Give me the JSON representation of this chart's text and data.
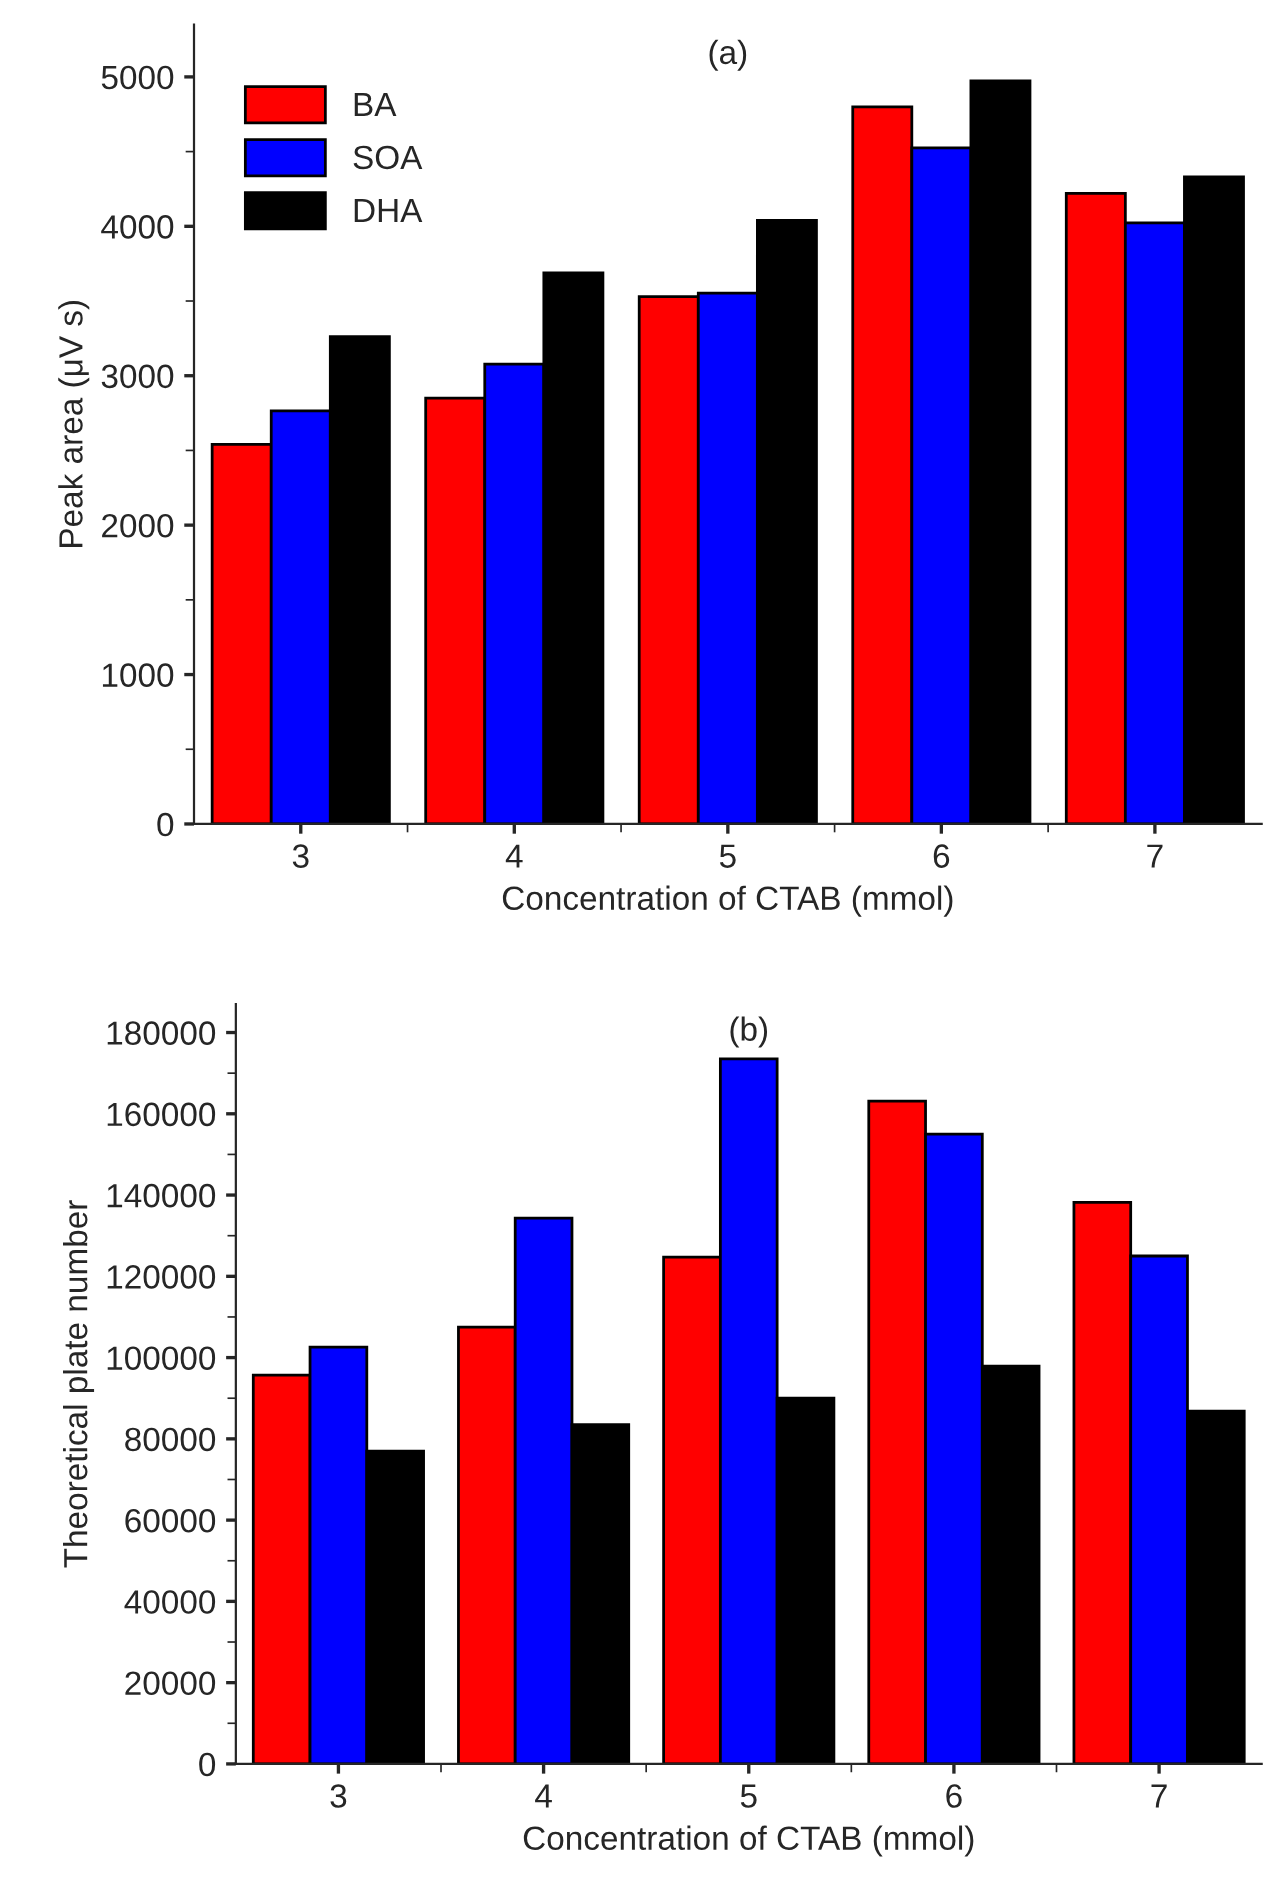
{
  "chart_data": [
    {
      "type": "bar",
      "title": "(a)",
      "xlabel": "Concentration of CTAB (mmol)",
      "ylabel": "Peak area (μV s)",
      "categories": [
        "3",
        "4",
        "5",
        "6",
        "7"
      ],
      "series": [
        {
          "name": "BA",
          "color": "#ff0000",
          "values": [
            2540,
            2850,
            3530,
            4800,
            4220
          ]
        },
        {
          "name": "SOA",
          "color": "#0000ff",
          "values": [
            2765,
            3078,
            3553,
            4525,
            4023
          ]
        },
        {
          "name": "DHA",
          "color": "#000000",
          "values": [
            3261,
            3688,
            4039,
            4973,
            4330
          ]
        }
      ],
      "ylim": [
        0,
        5350
      ],
      "yticks": [
        0,
        1000,
        2000,
        3000,
        4000,
        5000
      ],
      "legend": "top left",
      "grid": false
    },
    {
      "type": "bar",
      "title": "(b)",
      "xlabel": "Concentration of CTAB (mmol)",
      "ylabel": "Theoretical plate number",
      "categories": [
        "3",
        "4",
        "5",
        "6",
        "7"
      ],
      "series": [
        {
          "color": "#ff0000",
          "values": [
            95700,
            107500,
            124700,
            163100,
            138200
          ]
        },
        {
          "color": "#0000ff",
          "values": [
            102600,
            134300,
            173500,
            155000,
            125000
          ]
        },
        {
          "color": "#000000",
          "values": [
            77000,
            83500,
            90000,
            97900,
            86800
          ]
        }
      ],
      "ylim": [
        0,
        187000
      ],
      "yticks": [
        0,
        20000,
        40000,
        60000,
        80000,
        100000,
        120000,
        140000,
        160000,
        180000
      ],
      "grid": false
    }
  ]
}
